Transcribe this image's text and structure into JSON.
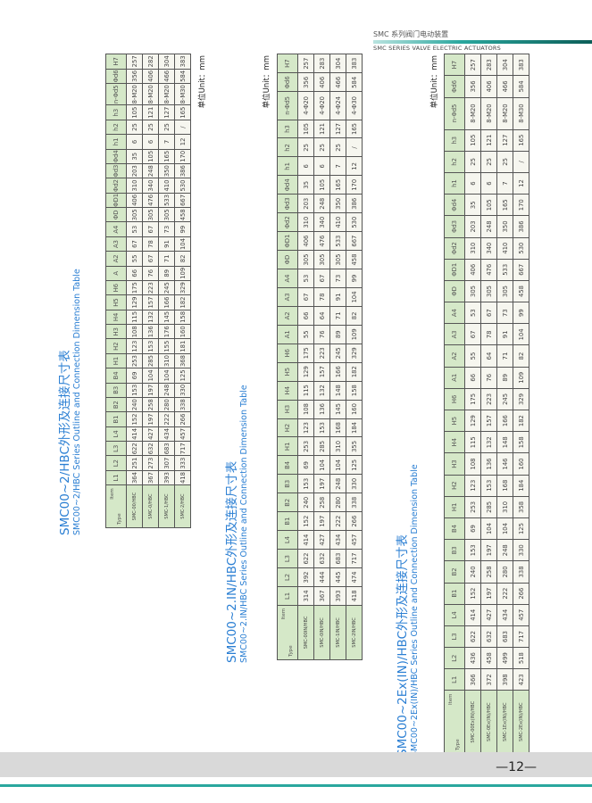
{
  "header": {
    "title_cn": "SMC 系列阀门电动装置",
    "title_en": "SMC SERIES VALVE ELECTRIC ACTUATORS"
  },
  "colors": {
    "accent": "#2aa79e",
    "title": "#2b7fd3",
    "header_cell": "#d5e8c8"
  },
  "footer": {
    "page": "—12—"
  },
  "tables": [
    {
      "title_cn": "SMC00~2/HBC外形及连接尺寸表",
      "title_en": "SMC00~2/HBC Series Outline and Connection Dimension Table",
      "unit": "单位Unit：mm",
      "corner_item": "Item",
      "corner_type": "Type",
      "headers": [
        "L1",
        "L2",
        "L3",
        "L4",
        "B1",
        "B2",
        "B3",
        "B4",
        "H1",
        "H2",
        "H3",
        "H4",
        "H5",
        "H6",
        "A",
        "A2",
        "A3",
        "A4",
        "ΦD",
        "ΦD1",
        "Φd2",
        "Φd3",
        "Φd4",
        "h1",
        "h2",
        "h3",
        "n-Φd5",
        "Φd6",
        "H7"
      ],
      "rows": [
        {
          "type": "SMC-00/HBC",
          "values": [
            "364",
            "251",
            "622",
            "414",
            "152",
            "240",
            "153",
            "69",
            "253",
            "123",
            "108",
            "115",
            "129",
            "175",
            "66",
            "55",
            "67",
            "53",
            "305",
            "406",
            "310",
            "203",
            "35",
            "6",
            "25",
            "105",
            "8-M20",
            "356",
            "257"
          ]
        },
        {
          "type": "SMC-0/HBC",
          "values": [
            "367",
            "273",
            "632",
            "427",
            "197",
            "258",
            "197",
            "104",
            "285",
            "153",
            "136",
            "132",
            "157",
            "223",
            "76",
            "67",
            "78",
            "67",
            "305",
            "476",
            "340",
            "248",
            "105",
            "6",
            "25",
            "121",
            "8-M20",
            "406",
            "282"
          ]
        },
        {
          "type": "SMC-1/HBC",
          "values": [
            "393",
            "307",
            "683",
            "434",
            "222",
            "280",
            "248",
            "104",
            "310",
            "155",
            "176",
            "145",
            "166",
            "245",
            "89",
            "71",
            "91",
            "73",
            "305",
            "533",
            "410",
            "350",
            "165",
            "7",
            "25",
            "127",
            "8-M20",
            "466",
            "304"
          ]
        },
        {
          "type": "SMC-2/HBC",
          "values": [
            "418",
            "333",
            "717",
            "457",
            "266",
            "338",
            "330",
            "125",
            "368",
            "181",
            "160",
            "158",
            "182",
            "329",
            "109",
            "82",
            "104",
            "99",
            "458",
            "667",
            "530",
            "386",
            "170",
            "12",
            "/",
            "165",
            "8-M30",
            "584",
            "383"
          ]
        }
      ]
    },
    {
      "title_cn": "SMC00~2.IN/HBC外形及连接尺寸表",
      "title_en": "SMC00~2.IN/HBC Series Outline and Connection Dimension Table",
      "unit": "单位Unit：mm",
      "corner_item": "Item",
      "corner_type": "Type",
      "headers": [
        "L1",
        "L2",
        "L3",
        "L4",
        "B1",
        "B2",
        "B3",
        "B4",
        "H1",
        "H2",
        "H3",
        "H4",
        "H5",
        "H6",
        "A1",
        "A2",
        "A3",
        "A4",
        "ΦD",
        "ΦD1",
        "Φd2",
        "Φd3",
        "Φd4",
        "h1",
        "h2",
        "h3",
        "n-Φd5",
        "Φd6",
        "H7"
      ],
      "rows": [
        {
          "type": "SMC-00IN/HBC",
          "values": [
            "314",
            "392",
            "622",
            "414",
            "152",
            "240",
            "153",
            "69",
            "253",
            "123",
            "108",
            "115",
            "129",
            "175",
            "55",
            "66",
            "67",
            "53",
            "305",
            "406",
            "310",
            "203",
            "35",
            "6",
            "25",
            "105",
            "4-Φ20",
            "356",
            "257"
          ]
        },
        {
          "type": "SMC-0IN/HBC",
          "values": [
            "367",
            "444",
            "632",
            "427",
            "197",
            "258",
            "197",
            "104",
            "285",
            "153",
            "136",
            "132",
            "157",
            "223",
            "76",
            "64",
            "78",
            "67",
            "305",
            "476",
            "340",
            "248",
            "105",
            "6",
            "25",
            "121",
            "4-Φ20",
            "406",
            "283"
          ]
        },
        {
          "type": "SMC-1IN/HBC",
          "values": [
            "393",
            "445",
            "683",
            "434",
            "222",
            "280",
            "248",
            "104",
            "310",
            "168",
            "145",
            "148",
            "166",
            "245",
            "89",
            "71",
            "91",
            "73",
            "305",
            "533",
            "410",
            "350",
            "165",
            "7",
            "25",
            "127",
            "4-Φ24",
            "466",
            "304"
          ]
        },
        {
          "type": "SMC-2IN/HBC",
          "values": [
            "418",
            "474",
            "717",
            "457",
            "266",
            "338",
            "330",
            "125",
            "355",
            "184",
            "160",
            "158",
            "182",
            "329",
            "109",
            "82",
            "104",
            "99",
            "458",
            "667",
            "530",
            "386",
            "170",
            "12",
            "/",
            "165",
            "4-Φ30",
            "584",
            "383"
          ]
        }
      ]
    },
    {
      "title_cn": "SMC00~2Ex(IN)/HBC外形及连接尺寸表",
      "title_en": "SMC00~2Ex(IN)/HBC Series Outline and Connection Dimension Table",
      "unit": "单位Unit：mm",
      "corner_item": "Item",
      "corner_type": "Type",
      "headers": [
        "L1",
        "L2",
        "L3",
        "L4",
        "B1",
        "B2",
        "B3",
        "B4",
        "H1",
        "H2",
        "H3",
        "H4",
        "H5",
        "H6",
        "A1",
        "A2",
        "A3",
        "A4",
        "ΦD",
        "ΦD1",
        "Φd2",
        "Φd3",
        "Φd4",
        "h1",
        "h2",
        "h3",
        "n-Φd5",
        "Φd6",
        "H7"
      ],
      "rows": [
        {
          "type": "SMC-00Ex(IN)/HBC",
          "values": [
            "366",
            "436",
            "622",
            "414",
            "152",
            "240",
            "153",
            "69",
            "253",
            "123",
            "108",
            "115",
            "129",
            "175",
            "66",
            "55",
            "67",
            "53",
            "305",
            "406",
            "310",
            "203",
            "35",
            "6",
            "25",
            "105",
            "8-M20",
            "356",
            "257"
          ]
        },
        {
          "type": "SMC-0Ex(IN)/HBC",
          "values": [
            "372",
            "458",
            "632",
            "427",
            "197",
            "258",
            "197",
            "104",
            "285",
            "153",
            "136",
            "132",
            "157",
            "223",
            "76",
            "64",
            "78",
            "67",
            "305",
            "476",
            "340",
            "248",
            "105",
            "6",
            "25",
            "121",
            "8-M20",
            "406",
            "283"
          ]
        },
        {
          "type": "SMC-1Ex(IN)/HBC",
          "values": [
            "398",
            "499",
            "683",
            "434",
            "222",
            "280",
            "248",
            "104",
            "310",
            "168",
            "146",
            "148",
            "166",
            "245",
            "89",
            "71",
            "91",
            "73",
            "305",
            "533",
            "410",
            "350",
            "165",
            "7",
            "25",
            "127",
            "8-M20",
            "466",
            "304"
          ]
        },
        {
          "type": "SMC-2Ex(IN)/HBC",
          "values": [
            "423",
            "518",
            "717",
            "457",
            "266",
            "338",
            "330",
            "125",
            "358",
            "184",
            "160",
            "158",
            "182",
            "329",
            "109",
            "82",
            "104",
            "99",
            "458",
            "667",
            "530",
            "386",
            "170",
            "12",
            "/",
            "165",
            "8-M30",
            "584",
            "383"
          ]
        }
      ]
    }
  ]
}
